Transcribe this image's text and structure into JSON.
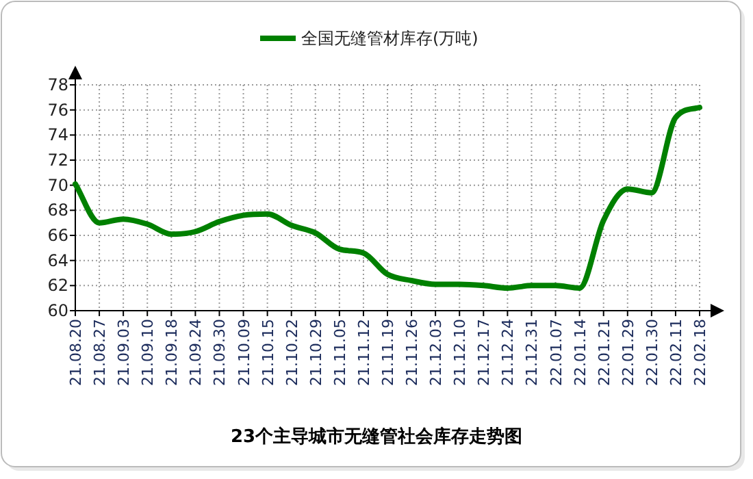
{
  "chart_data": {
    "type": "line",
    "title": "23个主导城市无缝管社会库存走势图",
    "categories": [
      "21.08.20",
      "21.08.27",
      "21.09.03",
      "21.09.10",
      "21.09.18",
      "21.09.24",
      "21.09.30",
      "21.10.09",
      "21.10.15",
      "21.10.22",
      "21.10.29",
      "21.11.05",
      "21.11.12",
      "21.11.19",
      "21.11.26",
      "21.12.03",
      "21.12.10",
      "21.12.17",
      "21.12.24",
      "21.12.31",
      "22.01.07",
      "22.01.14",
      "22.01.21",
      "22.01.29",
      "22.01.30",
      "22.02.11",
      "22.02.18"
    ],
    "series": [
      {
        "name": "全国无缝管材库存(万吨)",
        "color": "#008000",
        "values": [
          70.1,
          67.0,
          67.3,
          66.9,
          66.1,
          66.3,
          67.1,
          67.6,
          67.7,
          66.8,
          66.2,
          64.9,
          64.6,
          62.9,
          62.4,
          62.1,
          62.1,
          62.0,
          61.8,
          62.0,
          62.0,
          61.8,
          67.2,
          69.7,
          69.4,
          75.4,
          76.2
        ]
      }
    ],
    "ylim": [
      60,
      78
    ],
    "yticks": [
      60,
      62,
      64,
      66,
      68,
      70,
      72,
      74,
      76,
      78
    ],
    "grid": true,
    "legend": "top"
  }
}
